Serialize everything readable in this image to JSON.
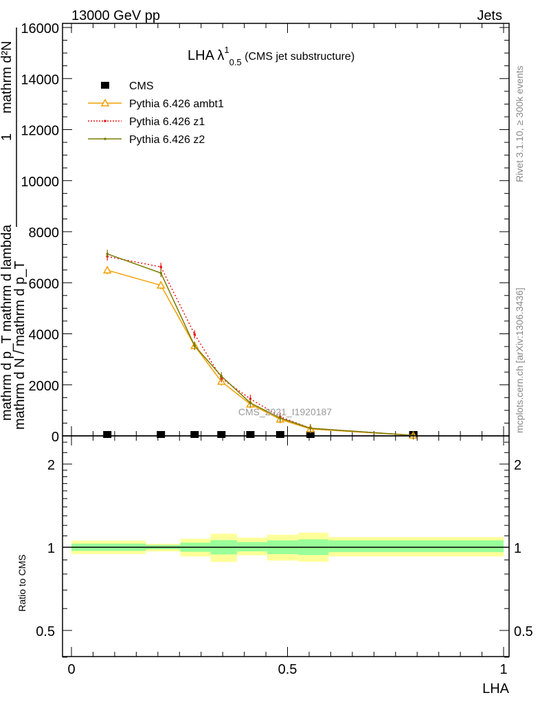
{
  "header": {
    "left": "13000 GeV pp",
    "right": "Jets"
  },
  "side_text": {
    "rivet": "Rivet 3.1.10, ≥ 300k events",
    "mcplots": "mcplots.cern.ch [arXiv:1306.3436]"
  },
  "watermark": "CMS_2021_I1920187",
  "chart_data": [
    {
      "type": "line",
      "title": {
        "main": "LHA λ",
        "sup": "1",
        "sub": "0.5",
        "rest": " (CMS jet substructure)"
      },
      "ylabel": {
        "frac_num": "1",
        "num_top": "mathrm d²N",
        "denom_top": "mathrm d p_T mathrm d lambda",
        "denom_bottom": "mathrm d N / mathrm d p_T"
      },
      "xlim": [
        0,
        1
      ],
      "ylim": [
        0,
        16000
      ],
      "yticks": [
        0,
        2000,
        4000,
        6000,
        8000,
        10000,
        12000,
        14000,
        16000
      ],
      "yticklabels": [
        "0",
        "2000",
        "4000",
        "6000",
        "8000",
        "10000",
        "12000",
        "14000",
        "16000"
      ],
      "x": [
        0.083,
        0.207,
        0.285,
        0.347,
        0.414,
        0.483,
        0.553,
        0.791
      ],
      "legend_position": "top-left",
      "series": [
        {
          "name": "CMS",
          "color": "#000000",
          "marker": "square",
          "values": [
            20,
            20,
            20,
            20,
            20,
            20,
            20,
            20
          ]
        },
        {
          "name": "Pythia 6.426 ambt1",
          "color": "#f0a000",
          "marker": "triangle",
          "style": "solid",
          "values": [
            6490,
            5900,
            3530,
            2130,
            1240,
            650,
            270,
            20
          ]
        },
        {
          "name": "Pythia 6.426 z1",
          "color": "#ee1111",
          "marker": "dot",
          "style": "dotted",
          "values": [
            7030,
            6620,
            3980,
            2260,
            1450,
            750,
            300,
            20
          ]
        },
        {
          "name": "Pythia 6.426 z2",
          "color": "#7a7a00",
          "marker": "dot",
          "style": "solid",
          "values": [
            7130,
            6380,
            3530,
            2340,
            1290,
            700,
            300,
            20
          ]
        }
      ]
    },
    {
      "type": "area",
      "ylabel": "Ratio to CMS",
      "xlabel": "LHA",
      "xlim": [
        0,
        1
      ],
      "ylim": [
        0.4,
        2.44
      ],
      "yscale": "log",
      "xticks": [
        0,
        0.5,
        1
      ],
      "xticklabels": [
        "0",
        "0.5",
        "1"
      ],
      "yticks": [
        0.5,
        1,
        2
      ],
      "yticklabels": [
        "0.5",
        "1",
        "2"
      ],
      "bin_edges": [
        0,
        0.172,
        0.252,
        0.322,
        0.383,
        0.453,
        0.525,
        0.595,
        1.0
      ],
      "yellow_band": [
        [
          0.945,
          1.057
        ],
        [
          0.966,
          1.029
        ],
        [
          0.926,
          1.073
        ],
        [
          0.885,
          1.119
        ],
        [
          0.935,
          1.083
        ],
        [
          0.895,
          1.11
        ],
        [
          0.887,
          1.129
        ],
        [
          0.927,
          1.088
        ]
      ],
      "green_band": [
        [
          0.97,
          1.031
        ],
        [
          0.983,
          1.019
        ],
        [
          0.963,
          1.039
        ],
        [
          0.942,
          1.061
        ],
        [
          0.966,
          1.044
        ],
        [
          0.944,
          1.059
        ],
        [
          0.937,
          1.068
        ],
        [
          0.96,
          1.059
        ]
      ],
      "colors": {
        "yellow": "#ffff99",
        "green": "#99ff99",
        "reference": "#000000"
      }
    }
  ]
}
